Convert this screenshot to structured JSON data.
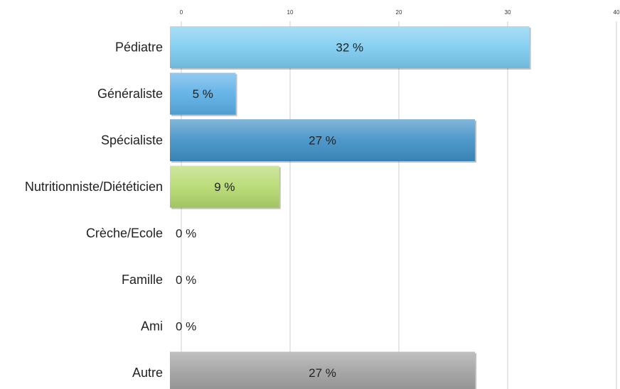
{
  "chart_data": {
    "type": "bar",
    "orientation": "horizontal",
    "title": "",
    "xlabel": "",
    "ylabel": "",
    "xlim": [
      0,
      40
    ],
    "x_ticks": [
      0,
      10,
      20,
      30,
      40
    ],
    "x_tick_labels": [
      "0",
      "10",
      "20",
      "30",
      "40"
    ],
    "axis_position": "top",
    "grid": true,
    "legend": "none",
    "categories": [
      "Pédiatre",
      "Généraliste",
      "Spécialiste",
      "Nutritionniste/Diététicien",
      "Crèche/Ecole",
      "Famille",
      "Ami",
      "Autre"
    ],
    "values": [
      32,
      5,
      27,
      9,
      0,
      0,
      0,
      27
    ],
    "data_labels": [
      "32 %",
      "5 %",
      "27 %",
      "9 %",
      "0 %",
      "0 %",
      "0 %",
      "27 %"
    ],
    "colors": [
      "#7ccbf0",
      "#5aaee6",
      "#3f8fc6",
      "#b5d96e",
      "#cccccc",
      "#cccccc",
      "#cccccc",
      "#9e9e9e"
    ]
  }
}
